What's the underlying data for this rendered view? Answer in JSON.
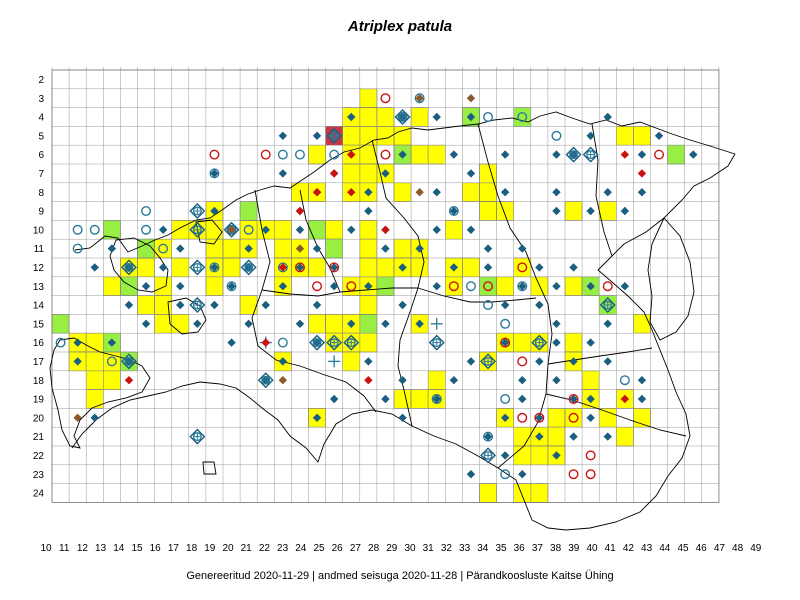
{
  "title": "Atriplex patula",
  "footer": {
    "generated": "Genereeritud 2020-11-29",
    "data_state": "andmed seisuga 2020-11-28",
    "organization": "Pärandkoosluste Kaitse Ühing",
    "separator": "|"
  },
  "grid": {
    "row_labels": [
      "2",
      "3",
      "4",
      "5",
      "6",
      "7",
      "8",
      "9",
      "10",
      "11",
      "12",
      "13",
      "14",
      "15",
      "16",
      "17",
      "18",
      "19",
      "20",
      "21",
      "22",
      "23",
      "24"
    ],
    "col_labels": [
      "10",
      "11",
      "12",
      "13",
      "14",
      "15",
      "16",
      "17",
      "18",
      "19",
      "20",
      "21",
      "22",
      "23",
      "24",
      "25",
      "26",
      "27",
      "28",
      "29",
      "30",
      "31",
      "32",
      "33",
      "34",
      "35",
      "36",
      "37",
      "38",
      "39",
      "40",
      "41",
      "42",
      "43",
      "44",
      "45",
      "46",
      "47",
      "48",
      "49"
    ]
  },
  "colors": {
    "yellow_cell": "#ffff00",
    "green_cell": "#99ee44",
    "red_cell": "#cc3344",
    "diamond_blue": "#1a5e80",
    "circle_teal": "#2a7a99",
    "circle_red": "#cc1111",
    "diamond_red": "#cc1111",
    "diamond_brown": "#8b5a2b",
    "border_black": "#000000",
    "grid_gray": "#999999"
  },
  "cells": {
    "yellow": [
      [
        29,
        3
      ],
      [
        28,
        4
      ],
      [
        29,
        4
      ],
      [
        30,
        4
      ],
      [
        32,
        4
      ],
      [
        35,
        4
      ],
      [
        44,
        5
      ],
      [
        45,
        5
      ],
      [
        31,
        5
      ],
      [
        30,
        5
      ],
      [
        29,
        5
      ],
      [
        28,
        5
      ],
      [
        26,
        6
      ],
      [
        28,
        6
      ],
      [
        29,
        6
      ],
      [
        31,
        6
      ],
      [
        32,
        6
      ],
      [
        33,
        6
      ],
      [
        28,
        7
      ],
      [
        29,
        7
      ],
      [
        30,
        7
      ],
      [
        36,
        7
      ],
      [
        25,
        8
      ],
      [
        26,
        8
      ],
      [
        28,
        8
      ],
      [
        29,
        8
      ],
      [
        31,
        8
      ],
      [
        36,
        8
      ],
      [
        35,
        8
      ],
      [
        36,
        9
      ],
      [
        37,
        9
      ],
      [
        41,
        9
      ],
      [
        43,
        9
      ],
      [
        20,
        9
      ],
      [
        18,
        10
      ],
      [
        19,
        10
      ],
      [
        20,
        10
      ],
      [
        22,
        10
      ],
      [
        23,
        10
      ],
      [
        24,
        10
      ],
      [
        26,
        10
      ],
      [
        27,
        10
      ],
      [
        29,
        10
      ],
      [
        34,
        10
      ],
      [
        16,
        11
      ],
      [
        17,
        11
      ],
      [
        20,
        11
      ],
      [
        21,
        11
      ],
      [
        22,
        11
      ],
      [
        24,
        11
      ],
      [
        25,
        11
      ],
      [
        27,
        11
      ],
      [
        29,
        11
      ],
      [
        31,
        11
      ],
      [
        32,
        11
      ],
      [
        15,
        12
      ],
      [
        16,
        12
      ],
      [
        18,
        12
      ],
      [
        20,
        12
      ],
      [
        21,
        12
      ],
      [
        24,
        12
      ],
      [
        25,
        12
      ],
      [
        26,
        12
      ],
      [
        29,
        12
      ],
      [
        30,
        12
      ],
      [
        31,
        12
      ],
      [
        32,
        12
      ],
      [
        34,
        12
      ],
      [
        35,
        12
      ],
      [
        38,
        12
      ],
      [
        14,
        13
      ],
      [
        15,
        13
      ],
      [
        17,
        13
      ],
      [
        20,
        13
      ],
      [
        24,
        13
      ],
      [
        28,
        13
      ],
      [
        29,
        13
      ],
      [
        34,
        13
      ],
      [
        37,
        13
      ],
      [
        39,
        13
      ],
      [
        41,
        13
      ],
      [
        16,
        14
      ],
      [
        17,
        14
      ],
      [
        22,
        14
      ],
      [
        29,
        14
      ],
      [
        17,
        15
      ],
      [
        18,
        15
      ],
      [
        26,
        15
      ],
      [
        27,
        15
      ],
      [
        28,
        15
      ],
      [
        32,
        15
      ],
      [
        45,
        15
      ],
      [
        12,
        16
      ],
      [
        13,
        16
      ],
      [
        27,
        16
      ],
      [
        28,
        16
      ],
      [
        29,
        16
      ],
      [
        37,
        16
      ],
      [
        38,
        16
      ],
      [
        39,
        16
      ],
      [
        41,
        16
      ],
      [
        12,
        17
      ],
      [
        13,
        17
      ],
      [
        14,
        17
      ],
      [
        24,
        17
      ],
      [
        28,
        17
      ],
      [
        36,
        17
      ],
      [
        41,
        17
      ],
      [
        13,
        18
      ],
      [
        14,
        18
      ],
      [
        33,
        18
      ],
      [
        42,
        18
      ],
      [
        13,
        19
      ],
      [
        31,
        19
      ],
      [
        32,
        19
      ],
      [
        33,
        19
      ],
      [
        42,
        19
      ],
      [
        44,
        19
      ],
      [
        26,
        20
      ],
      [
        37,
        20
      ],
      [
        40,
        20
      ],
      [
        41,
        20
      ],
      [
        43,
        20
      ],
      [
        45,
        20
      ],
      [
        38,
        21
      ],
      [
        39,
        21
      ],
      [
        40,
        21
      ],
      [
        44,
        21
      ],
      [
        38,
        22
      ],
      [
        39,
        22
      ],
      [
        40,
        22
      ],
      [
        36,
        24
      ],
      [
        38,
        24
      ],
      [
        39,
        24
      ]
    ],
    "green": [
      [
        35,
        4
      ],
      [
        38,
        4
      ],
      [
        47,
        6
      ],
      [
        31,
        6
      ],
      [
        16,
        11
      ],
      [
        14,
        10
      ],
      [
        22,
        9
      ],
      [
        27,
        11
      ],
      [
        15,
        13
      ],
      [
        36,
        13
      ],
      [
        42,
        13
      ],
      [
        43,
        14
      ],
      [
        11,
        15
      ],
      [
        14,
        16
      ],
      [
        15,
        17
      ],
      [
        26,
        10
      ],
      [
        29,
        15
      ],
      [
        30,
        13
      ]
    ],
    "red": [
      [
        27,
        5
      ]
    ]
  },
  "markers": {
    "diamond_blue": [
      [
        28,
        4
      ],
      [
        31,
        4
      ],
      [
        33,
        4
      ],
      [
        35,
        4
      ],
      [
        43,
        4
      ],
      [
        24,
        5
      ],
      [
        26,
        5
      ],
      [
        42,
        5
      ],
      [
        46,
        5
      ],
      [
        40,
        6
      ],
      [
        41,
        6
      ],
      [
        45,
        6
      ],
      [
        48,
        6
      ],
      [
        31,
        6
      ],
      [
        34,
        6
      ],
      [
        37,
        6
      ],
      [
        24,
        7
      ],
      [
        27,
        7
      ],
      [
        30,
        7
      ],
      [
        35,
        7
      ],
      [
        20,
        7
      ],
      [
        26,
        8
      ],
      [
        33,
        8
      ],
      [
        37,
        8
      ],
      [
        40,
        8
      ],
      [
        43,
        8
      ],
      [
        45,
        8
      ],
      [
        29,
        8
      ],
      [
        20,
        9
      ],
      [
        25,
        9
      ],
      [
        29,
        9
      ],
      [
        34,
        9
      ],
      [
        40,
        9
      ],
      [
        42,
        9
      ],
      [
        44,
        9
      ],
      [
        17,
        10
      ],
      [
        21,
        10
      ],
      [
        23,
        10
      ],
      [
        25,
        10
      ],
      [
        28,
        10
      ],
      [
        30,
        10
      ],
      [
        33,
        10
      ],
      [
        35,
        10
      ],
      [
        14,
        11
      ],
      [
        18,
        11
      ],
      [
        22,
        11
      ],
      [
        26,
        11
      ],
      [
        30,
        11
      ],
      [
        32,
        11
      ],
      [
        36,
        11
      ],
      [
        38,
        11
      ],
      [
        13,
        12
      ],
      [
        15,
        12
      ],
      [
        17,
        12
      ],
      [
        20,
        12
      ],
      [
        22,
        12
      ],
      [
        25,
        12
      ],
      [
        27,
        12
      ],
      [
        31,
        12
      ],
      [
        34,
        12
      ],
      [
        36,
        12
      ],
      [
        39,
        12
      ],
      [
        41,
        12
      ],
      [
        16,
        13
      ],
      [
        18,
        13
      ],
      [
        21,
        13
      ],
      [
        24,
        13
      ],
      [
        27,
        13
      ],
      [
        29,
        13
      ],
      [
        33,
        13
      ],
      [
        38,
        13
      ],
      [
        40,
        13
      ],
      [
        42,
        13
      ],
      [
        44,
        13
      ],
      [
        15,
        14
      ],
      [
        18,
        14
      ],
      [
        20,
        14
      ],
      [
        23,
        14
      ],
      [
        26,
        14
      ],
      [
        31,
        14
      ],
      [
        37,
        14
      ],
      [
        39,
        14
      ],
      [
        16,
        15
      ],
      [
        19,
        15
      ],
      [
        22,
        15
      ],
      [
        25,
        15
      ],
      [
        28,
        15
      ],
      [
        30,
        15
      ],
      [
        32,
        15
      ],
      [
        40,
        15
      ],
      [
        43,
        15
      ],
      [
        12,
        16
      ],
      [
        14,
        16
      ],
      [
        21,
        16
      ],
      [
        26,
        16
      ],
      [
        37,
        16
      ],
      [
        40,
        16
      ],
      [
        42,
        16
      ],
      [
        12,
        17
      ],
      [
        15,
        17
      ],
      [
        24,
        17
      ],
      [
        29,
        17
      ],
      [
        35,
        17
      ],
      [
        39,
        17
      ],
      [
        41,
        17
      ],
      [
        43,
        17
      ],
      [
        23,
        18
      ],
      [
        31,
        18
      ],
      [
        34,
        18
      ],
      [
        38,
        18
      ],
      [
        40,
        18
      ],
      [
        45,
        18
      ],
      [
        27,
        19
      ],
      [
        30,
        19
      ],
      [
        33,
        19
      ],
      [
        38,
        19
      ],
      [
        41,
        19
      ],
      [
        42,
        19
      ],
      [
        45,
        19
      ],
      [
        13,
        20
      ],
      [
        26,
        20
      ],
      [
        31,
        20
      ],
      [
        37,
        20
      ],
      [
        39,
        20
      ],
      [
        42,
        20
      ],
      [
        36,
        21
      ],
      [
        39,
        21
      ],
      [
        41,
        21
      ],
      [
        43,
        21
      ],
      [
        37,
        22
      ],
      [
        40,
        22
      ],
      [
        35,
        23
      ],
      [
        38,
        23
      ]
    ],
    "circle_teal": [
      [
        32,
        3
      ],
      [
        31,
        4
      ],
      [
        36,
        4
      ],
      [
        38,
        4
      ],
      [
        40,
        5
      ],
      [
        24,
        6
      ],
      [
        25,
        6
      ],
      [
        27,
        6
      ],
      [
        20,
        7
      ],
      [
        34,
        9
      ],
      [
        13,
        10
      ],
      [
        12,
        10
      ],
      [
        16,
        9
      ],
      [
        16,
        10
      ],
      [
        12,
        11
      ],
      [
        17,
        11
      ],
      [
        21,
        10
      ],
      [
        22,
        10
      ],
      [
        20,
        12
      ],
      [
        24,
        12
      ],
      [
        21,
        13
      ],
      [
        35,
        13
      ],
      [
        38,
        13
      ],
      [
        37,
        15
      ],
      [
        11,
        16
      ],
      [
        14,
        17
      ],
      [
        24,
        16
      ],
      [
        36,
        14
      ],
      [
        37,
        16
      ],
      [
        33,
        19
      ],
      [
        37,
        19
      ],
      [
        44,
        18
      ],
      [
        36,
        21
      ],
      [
        37,
        23
      ],
      [
        33,
        19
      ]
    ],
    "circle_red": [
      [
        30,
        3
      ],
      [
        20,
        6
      ],
      [
        23,
        6
      ],
      [
        30,
        6
      ],
      [
        46,
        6
      ],
      [
        25,
        12
      ],
      [
        27,
        12
      ],
      [
        28,
        13
      ],
      [
        26,
        13
      ],
      [
        34,
        13
      ],
      [
        36,
        13
      ],
      [
        38,
        12
      ],
      [
        43,
        13
      ],
      [
        37,
        16
      ],
      [
        38,
        17
      ],
      [
        41,
        19
      ],
      [
        38,
        20
      ],
      [
        39,
        20
      ],
      [
        41,
        20
      ],
      [
        42,
        22
      ],
      [
        41,
        23
      ],
      [
        42,
        23
      ]
    ],
    "circle_target": [
      [
        27,
        5
      ],
      [
        41,
        6
      ],
      [
        42,
        6
      ],
      [
        19,
        9
      ],
      [
        19,
        10
      ],
      [
        21,
        10
      ],
      [
        15,
        12
      ],
      [
        19,
        12
      ],
      [
        22,
        12
      ],
      [
        19,
        14
      ],
      [
        33,
        16
      ],
      [
        27,
        16
      ],
      [
        28,
        16
      ],
      [
        39,
        16
      ],
      [
        36,
        17
      ],
      [
        15,
        17
      ],
      [
        23,
        18
      ],
      [
        43,
        14
      ],
      [
        36,
        22
      ],
      [
        19,
        21
      ],
      [
        26,
        16
      ],
      [
        31,
        4
      ]
    ],
    "plus_teal": [
      [
        33,
        15
      ],
      [
        27,
        17
      ],
      [
        27,
        5
      ],
      [
        23,
        16
      ]
    ],
    "diamond_red": [
      [
        28,
        6
      ],
      [
        27,
        7
      ],
      [
        28,
        8
      ],
      [
        26,
        8
      ],
      [
        25,
        9
      ],
      [
        30,
        10
      ],
      [
        24,
        12
      ],
      [
        23,
        16
      ],
      [
        15,
        18
      ],
      [
        29,
        18
      ],
      [
        44,
        6
      ],
      [
        45,
        7
      ],
      [
        44,
        19
      ],
      [
        23,
        16
      ]
    ],
    "diamond_brown": [
      [
        32,
        3
      ],
      [
        35,
        3
      ],
      [
        21,
        10
      ],
      [
        25,
        11
      ],
      [
        32,
        8
      ],
      [
        24,
        18
      ],
      [
        12,
        20
      ]
    ]
  }
}
